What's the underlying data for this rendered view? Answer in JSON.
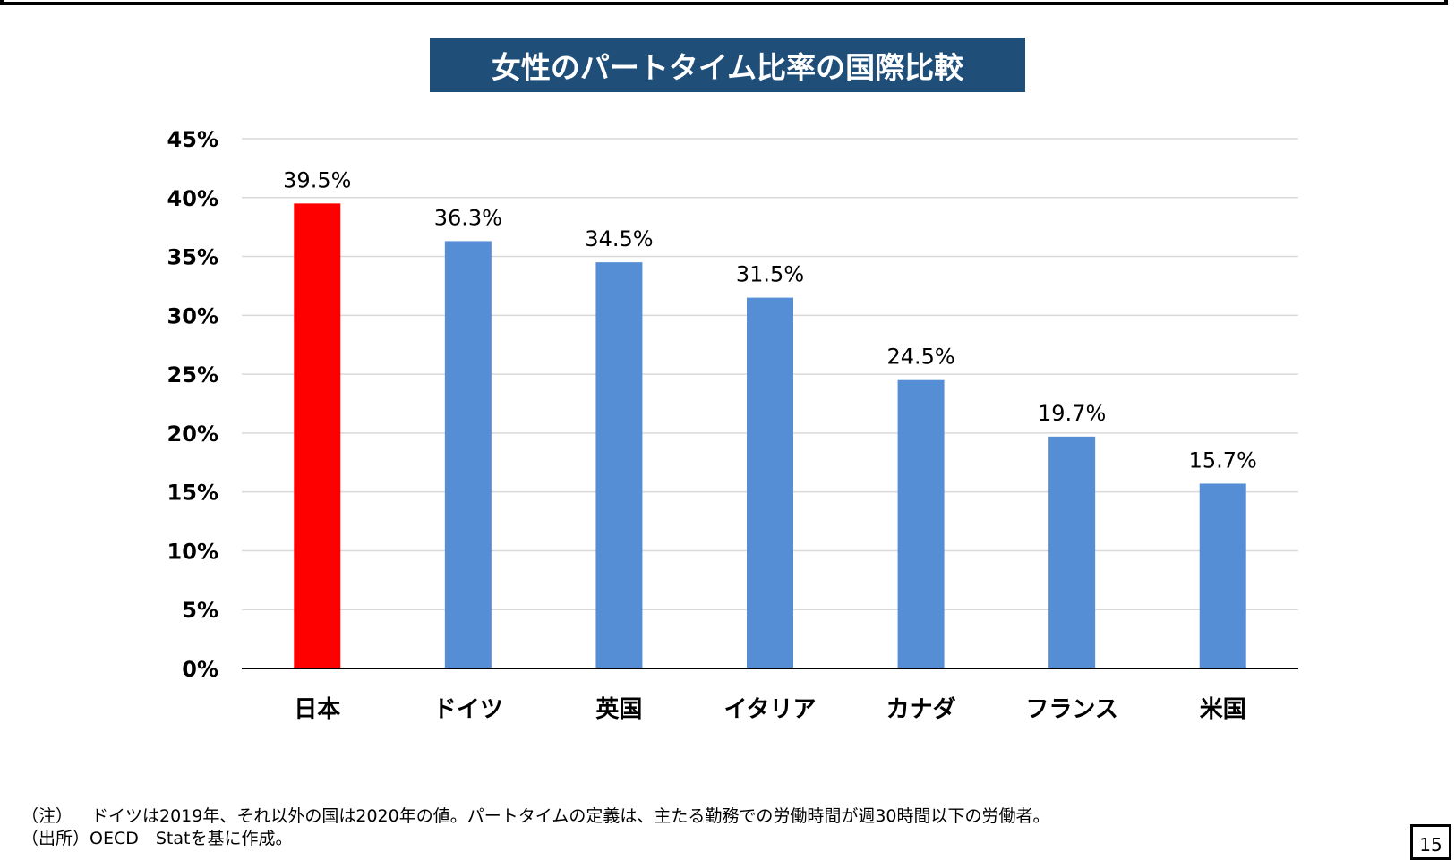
{
  "title": "女性のパートタイム比率の国際比較",
  "chart_data": {
    "type": "bar",
    "title": "女性のパートタイム比率の国際比較",
    "xlabel": "",
    "ylabel": "",
    "categories": [
      "日本",
      "ドイツ",
      "英国",
      "イタリア",
      "カナダ",
      "フランス",
      "米国"
    ],
    "values": [
      39.5,
      36.3,
      34.5,
      31.5,
      24.5,
      19.7,
      15.7
    ],
    "data_labels": [
      "39.5%",
      "36.3%",
      "34.5%",
      "31.5%",
      "24.5%",
      "19.7%",
      "15.7%"
    ],
    "ylim": [
      0,
      45
    ],
    "yticks": [
      0,
      5,
      10,
      15,
      20,
      25,
      30,
      35,
      40,
      45
    ],
    "ytick_labels": [
      "0%",
      "5%",
      "10%",
      "15%",
      "20%",
      "25%",
      "30%",
      "35%",
      "40%",
      "45%"
    ],
    "grid": true,
    "legend": "none",
    "colors": {
      "highlight": "#ff0000",
      "default": "#558ed5",
      "gridline": "#d9d9d9",
      "axis": "#000000"
    },
    "highlight_index": 0
  },
  "notes": {
    "note_tag": "（注）",
    "note_text": "ドイツは2019年、それ以外の国は2020年の値。パートタイムの定義は、主たる勤務での労働時間が週30時間以下の労働者。",
    "source_tag": "（出所）",
    "source_text": "OECD　Statを基に作成。"
  },
  "page_number": "15"
}
